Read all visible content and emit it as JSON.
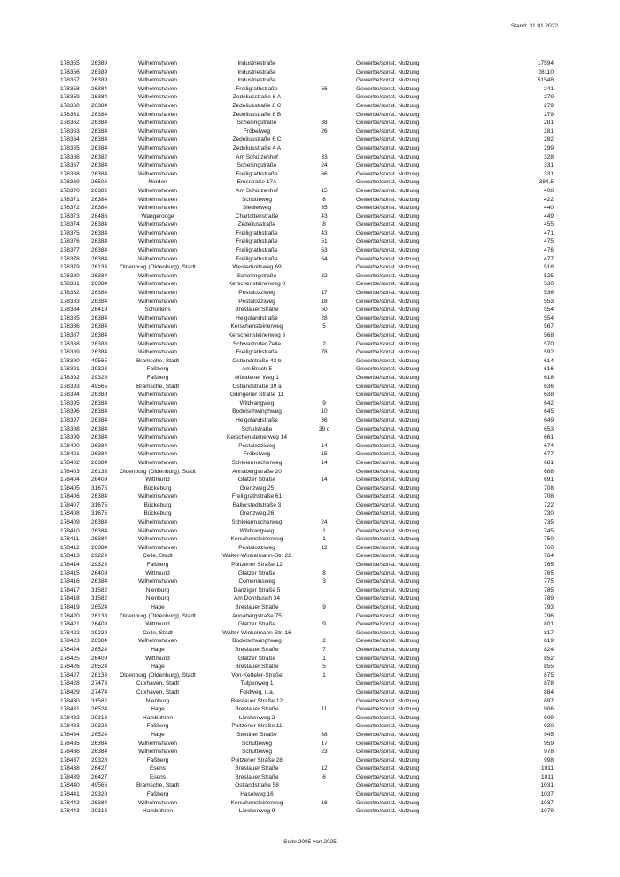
{
  "header": {
    "stand_label": "Stand: 31.01.2022"
  },
  "footer": {
    "page_label": "Seite 2005 von 2025"
  },
  "table": {
    "rows": [
      [
        "178355",
        "26389",
        "Wilhelmshaven",
        "Industriestraße",
        "",
        "Gewerbe/sonst. Nutzung",
        "17594"
      ],
      [
        "178356",
        "26389",
        "Wilhelmshaven",
        "Industriestraße",
        "",
        "Gewerbe/sonst. Nutzung",
        "28110"
      ],
      [
        "178357",
        "26389",
        "Wilhelmshaven",
        "Industriestraße",
        "",
        "Gewerbe/sonst. Nutzung",
        "51548"
      ],
      [
        "178358",
        "26384",
        "Wilhelmshaven",
        "Freiligrathstraße",
        "56",
        "Gewerbe/sonst. Nutzung",
        "241"
      ],
      [
        "178359",
        "26384",
        "Wilhelmshaven",
        "Zedeliusstraße 6 A",
        "",
        "Gewerbe/sonst. Nutzung",
        "279"
      ],
      [
        "178360",
        "26384",
        "Wilhelmshaven",
        "Zedeliusstraße 8 C",
        "",
        "Gewerbe/sonst. Nutzung",
        "279"
      ],
      [
        "178361",
        "26384",
        "Wilhelmshaven",
        "Zedeliusstraße 8 B",
        "",
        "Gewerbe/sonst. Nutzung",
        "279"
      ],
      [
        "178362",
        "26384",
        "Wilhelmshaven",
        "Schellingstraße",
        "88",
        "Gewerbe/sonst. Nutzung",
        "281"
      ],
      [
        "178363",
        "26384",
        "Wilhelmshaven",
        "Fröbelweg",
        "26",
        "Gewerbe/sonst. Nutzung",
        "281"
      ],
      [
        "178364",
        "26384",
        "Wilhelmshaven",
        "Zedeliusstraße 6 C",
        "",
        "Gewerbe/sonst. Nutzung",
        "282"
      ],
      [
        "178365",
        "26384",
        "Wilhelmshaven",
        "Zedeliusstraße 4 A",
        "",
        "Gewerbe/sonst. Nutzung",
        "299"
      ],
      [
        "178366",
        "26382",
        "Wilhelmshaven",
        "Am Schützenhof",
        "33",
        "Gewerbe/sonst. Nutzung",
        "328"
      ],
      [
        "178367",
        "26384",
        "Wilhelmshaven",
        "Schellingstraße",
        "24",
        "Gewerbe/sonst. Nutzung",
        "331"
      ],
      [
        "178368",
        "26384",
        "Wilhelmshaven",
        "Freiligrathstraße",
        "66",
        "Gewerbe/sonst. Nutzung",
        "331"
      ],
      [
        "178369",
        "26506",
        "Norden",
        "Emsstraße 17A",
        "",
        "Gewerbe/sonst. Nutzung",
        "384,5"
      ],
      [
        "178370",
        "26382",
        "Wilhelmshaven",
        "Am Schützenhof",
        "15",
        "Gewerbe/sonst. Nutzung",
        "408"
      ],
      [
        "178371",
        "26384",
        "Wilhelmshaven",
        "Schütteweg",
        "8",
        "Gewerbe/sonst. Nutzung",
        "422"
      ],
      [
        "178372",
        "26384",
        "Wilhelmshaven",
        "Siedlerweg",
        "35",
        "Gewerbe/sonst. Nutzung",
        "440"
      ],
      [
        "178373",
        "26486",
        "Wangerooge",
        "Charlottenstraße",
        "43",
        "Gewerbe/sonst. Nutzung",
        "449"
      ],
      [
        "178374",
        "26384",
        "Wilhelmshaven",
        "Zedeliusstraße",
        "8",
        "Gewerbe/sonst. Nutzung",
        "455"
      ],
      [
        "178375",
        "26384",
        "Wilhelmshaven",
        "Freiligrathstraße",
        "43",
        "Gewerbe/sonst. Nutzung",
        "471"
      ],
      [
        "178376",
        "26384",
        "Wilhelmshaven",
        "Freiligrathstraße",
        "51",
        "Gewerbe/sonst. Nutzung",
        "475"
      ],
      [
        "178377",
        "26384",
        "Wilhelmshaven",
        "Freiligrathstraße",
        "53",
        "Gewerbe/sonst. Nutzung",
        "476"
      ],
      [
        "178378",
        "26384",
        "Wilhelmshaven",
        "Freiligrathstraße",
        "64",
        "Gewerbe/sonst. Nutzung",
        "477"
      ],
      [
        "178379",
        "26133",
        "Oldenburg (Oldenburg), Stadt",
        "Westerholtsweg 69",
        "",
        "Gewerbe/sonst. Nutzung",
        "518"
      ],
      [
        "178380",
        "26384",
        "Wilhelmshaven",
        "Schellingstraße",
        "32",
        "Gewerbe/sonst. Nutzung",
        "525"
      ],
      [
        "178381",
        "26384",
        "Wilhelmshaven",
        "Kerschensteinerweg 8",
        "",
        "Gewerbe/sonst. Nutzung",
        "530"
      ],
      [
        "178382",
        "26384",
        "Wilhelmshaven",
        "Pestalozziweg",
        "17",
        "Gewerbe/sonst. Nutzung",
        "536"
      ],
      [
        "178383",
        "26384",
        "Wilhelmshaven",
        "Pestalozziweg",
        "18",
        "Gewerbe/sonst. Nutzung",
        "553"
      ],
      [
        "178384",
        "26419",
        "Schortens",
        "Breslauer Straße",
        "50",
        "Gewerbe/sonst. Nutzung",
        "554"
      ],
      [
        "178385",
        "26384",
        "Wilhelmshaven",
        "Helgolandstraße",
        "28",
        "Gewerbe/sonst. Nutzung",
        "554"
      ],
      [
        "178386",
        "26384",
        "Wilhelmshaven",
        "Kerschensteinerweg",
        "5",
        "Gewerbe/sonst. Nutzung",
        "567"
      ],
      [
        "178387",
        "26384",
        "Wilhelmshaven",
        "Kerschensteinerweg 6",
        "",
        "Gewerbe/sonst. Nutzung",
        "568"
      ],
      [
        "178388",
        "26388",
        "Wilhelmshaven",
        "Schwarzorter Zeile",
        "2",
        "Gewerbe/sonst. Nutzung",
        "570"
      ],
      [
        "178389",
        "26384",
        "Wilhelmshaven",
        "Freiligrathstraße",
        "78",
        "Gewerbe/sonst. Nutzung",
        "592"
      ],
      [
        "178390",
        "49565",
        "Bramsche, Stadt",
        "Ostlandstraße 43 b",
        "",
        "Gewerbe/sonst. Nutzung",
        "614"
      ],
      [
        "178391",
        "29328",
        "Faßberg",
        "Am Bruch 5",
        "",
        "Gewerbe/sonst. Nutzung",
        "616"
      ],
      [
        "178392",
        "29328",
        "Faßberg",
        "Mündener Weg 1",
        "",
        "Gewerbe/sonst. Nutzung",
        "618"
      ],
      [
        "178393",
        "49565",
        "Bramsche, Stadt",
        "Ostlandstraße 39 a",
        "",
        "Gewerbe/sonst. Nutzung",
        "636"
      ],
      [
        "178394",
        "26388",
        "Wilhelmshaven",
        "Gdingener Straße 11",
        "",
        "Gewerbe/sonst. Nutzung",
        "638"
      ],
      [
        "178395",
        "26384",
        "Wilhelmshaven",
        "Wildvangweg",
        "9",
        "Gewerbe/sonst. Nutzung",
        "642"
      ],
      [
        "178396",
        "26384",
        "Wilhelmshaven",
        "Bodelschwinghweg",
        "10",
        "Gewerbe/sonst. Nutzung",
        "645"
      ],
      [
        "178397",
        "26384",
        "Wilhelmshaven",
        "Helgolandstraße",
        "36",
        "Gewerbe/sonst. Nutzung",
        "649"
      ],
      [
        "178398",
        "26384",
        "Wilhelmshaven",
        "Schulstraße",
        "39 c",
        "Gewerbe/sonst. Nutzung",
        "653"
      ],
      [
        "178399",
        "26384",
        "Wilhelmshaven",
        "Kerschensteinerweg 14",
        "",
        "Gewerbe/sonst. Nutzung",
        "661"
      ],
      [
        "178400",
        "26384",
        "Wilhelmshaven",
        "Pestalozziweg",
        "14",
        "Gewerbe/sonst. Nutzung",
        "674"
      ],
      [
        "178401",
        "26384",
        "Wilhelmshaven",
        "Fröbelweg",
        "15",
        "Gewerbe/sonst. Nutzung",
        "677"
      ],
      [
        "178402",
        "26384",
        "Wilhelmshaven",
        "Schleiermacherweg",
        "14",
        "Gewerbe/sonst. Nutzung",
        "681"
      ],
      [
        "178403",
        "26133",
        "Oldenburg (Oldenburg), Stadt",
        "Annabergstraße 20",
        "",
        "Gewerbe/sonst. Nutzung",
        "688"
      ],
      [
        "178404",
        "26409",
        "Wittmund",
        "Glatzer Straße",
        "14",
        "Gewerbe/sonst. Nutzung",
        "691"
      ],
      [
        "178405",
        "31675",
        "Bückeburg",
        "Grenzweg 25",
        "",
        "Gewerbe/sonst. Nutzung",
        "708"
      ],
      [
        "178406",
        "26384",
        "Wilhelmshaven",
        "Freiligrathstraße 61",
        "",
        "Gewerbe/sonst. Nutzung",
        "708"
      ],
      [
        "178407",
        "31675",
        "Bückeburg",
        "Ballerstedtstraße 3",
        "",
        "Gewerbe/sonst. Nutzung",
        "722"
      ],
      [
        "178408",
        "31675",
        "Bückeburg",
        "Grenzweg 26",
        "",
        "Gewerbe/sonst. Nutzung",
        "730"
      ],
      [
        "178409",
        "26384",
        "Wilhelmshaven",
        "Schleiermacherweg",
        "24",
        "Gewerbe/sonst. Nutzung",
        "735"
      ],
      [
        "178410",
        "26384",
        "Wilhelmshaven",
        "Wildvangweg",
        "1",
        "Gewerbe/sonst. Nutzung",
        "745"
      ],
      [
        "178411",
        "26384",
        "Wilhelmshaven",
        "Kerschensteinerweg",
        "1",
        "Gewerbe/sonst. Nutzung",
        "750"
      ],
      [
        "178412",
        "26384",
        "Wilhelmshaven",
        "Pestalozziweg",
        "12",
        "Gewerbe/sonst. Nutzung",
        "760"
      ],
      [
        "178413",
        "29229",
        "Celle, Stadt",
        "Walter-Winkelmann-Str. 22",
        "",
        "Gewerbe/sonst. Nutzung",
        "764"
      ],
      [
        "178414",
        "29328",
        "Faßberg",
        "Poitzener Straße 12",
        "",
        "Gewerbe/sonst. Nutzung",
        "765"
      ],
      [
        "178415",
        "26409",
        "Wittmund",
        "Glatzer Straße",
        "8",
        "Gewerbe/sonst. Nutzung",
        "765"
      ],
      [
        "178416",
        "26384",
        "Wilhelmshaven",
        "Comeniusweg",
        "3",
        "Gewerbe/sonst. Nutzung",
        "775"
      ],
      [
        "178417",
        "31582",
        "Nienburg",
        "Danziger Straße 5",
        "",
        "Gewerbe/sonst. Nutzung",
        "785"
      ],
      [
        "178418",
        "31582",
        "Nienburg",
        "Am Dornbusch 34",
        "",
        "Gewerbe/sonst. Nutzung",
        "789"
      ],
      [
        "178419",
        "26524",
        "Hage",
        "Breslauer Straße",
        "9",
        "Gewerbe/sonst. Nutzung",
        "793"
      ],
      [
        "178420",
        "26133",
        "Oldenburg (Oldenburg), Stadt",
        "Annabergstraße 75",
        "",
        "Gewerbe/sonst. Nutzung",
        "796"
      ],
      [
        "178421",
        "26409",
        "Wittmund",
        "Glatzer Straße",
        "9",
        "Gewerbe/sonst. Nutzung",
        "801"
      ],
      [
        "178422",
        "29229",
        "Celle, Stadt",
        "Walter-Winkelmann-Str. 16",
        "",
        "Gewerbe/sonst. Nutzung",
        "817"
      ],
      [
        "178423",
        "26384",
        "Wilhelmshaven",
        "Bodelschwinghweg",
        "2",
        "Gewerbe/sonst. Nutzung",
        "819"
      ],
      [
        "178424",
        "26524",
        "Hage",
        "Breslauer Straße",
        "7",
        "Gewerbe/sonst. Nutzung",
        "824"
      ],
      [
        "178425",
        "26409",
        "Wittmund",
        "Glatzer Straße",
        "1",
        "Gewerbe/sonst. Nutzung",
        "852"
      ],
      [
        "178426",
        "26524",
        "Hage",
        "Breslauer Straße",
        "5",
        "Gewerbe/sonst. Nutzung",
        "855"
      ],
      [
        "178427",
        "26133",
        "Oldenburg (Oldenburg), Stadt",
        "Von-Ketteler-Straße",
        "1",
        "Gewerbe/sonst. Nutzung",
        "875"
      ],
      [
        "178428",
        "27478",
        "Cuxhaven, Stadt",
        "Tulpenweg 1",
        "",
        "Gewerbe/sonst. Nutzung",
        "878"
      ],
      [
        "178429",
        "27474",
        "Cuxhaven, Stadt",
        "Feldweg, u.a.",
        "",
        "Gewerbe/sonst. Nutzung",
        "884"
      ],
      [
        "178430",
        "31582",
        "Nienburg",
        "Breslauer Straße 12",
        "",
        "Gewerbe/sonst. Nutzung",
        "897"
      ],
      [
        "178431",
        "26524",
        "Hage",
        "Breslauer Straße",
        "11",
        "Gewerbe/sonst. Nutzung",
        "906"
      ],
      [
        "178432",
        "29313",
        "Hambühren",
        "Lärchenweg 2",
        "",
        "Gewerbe/sonst. Nutzung",
        "909"
      ],
      [
        "178433",
        "29328",
        "Faßberg",
        "Poitzener Straße 11",
        "",
        "Gewerbe/sonst. Nutzung",
        "920"
      ],
      [
        "178434",
        "26524",
        "Hage",
        "Stettiner Straße",
        "38",
        "Gewerbe/sonst. Nutzung",
        "945"
      ],
      [
        "178435",
        "26384",
        "Wilhelmshaven",
        "Schütteweg",
        "17",
        "Gewerbe/sonst. Nutzung",
        "959"
      ],
      [
        "178436",
        "26384",
        "Wilhelmshaven",
        "Schütteweg",
        "23",
        "Gewerbe/sonst. Nutzung",
        "978"
      ],
      [
        "178437",
        "29328",
        "Faßberg",
        "Poitzener Straße 28",
        "",
        "Gewerbe/sonst. Nutzung",
        "998"
      ],
      [
        "178438",
        "26427",
        "Esens",
        "Breslauer Straße",
        "12",
        "Gewerbe/sonst. Nutzung",
        "1011"
      ],
      [
        "178439",
        "26427",
        "Esens",
        "Breslauer Straße",
        "6",
        "Gewerbe/sonst. Nutzung",
        "1011"
      ],
      [
        "178440",
        "49565",
        "Bramsche, Stadt",
        "Ostlandstraße 58",
        "",
        "Gewerbe/sonst. Nutzung",
        "1031"
      ],
      [
        "178441",
        "29328",
        "Faßberg",
        "Haselweg 16",
        "",
        "Gewerbe/sonst. Nutzung",
        "1037"
      ],
      [
        "178442",
        "26384",
        "Wilhelmshaven",
        "Kerschensteinerweg",
        "18",
        "Gewerbe/sonst. Nutzung",
        "1037"
      ],
      [
        "178443",
        "29313",
        "Hambühren",
        "Lärchenweg 9",
        "",
        "Gewerbe/sonst. Nutzung",
        "1079"
      ]
    ]
  }
}
